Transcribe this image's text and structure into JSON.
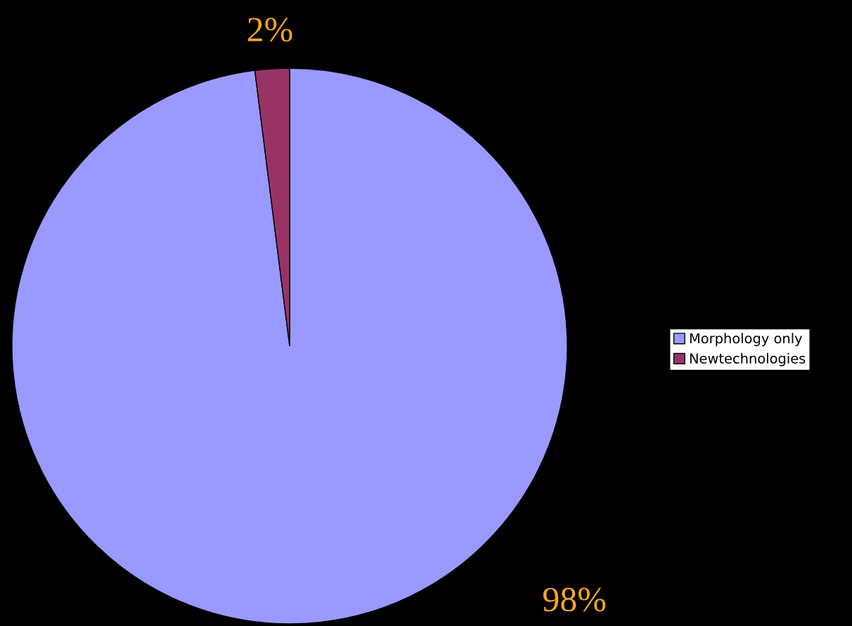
{
  "chart_data": {
    "type": "pie",
    "categories": [
      "Morphology only",
      "Newtechnologies"
    ],
    "values": [
      98,
      2
    ],
    "colors": [
      "#9999ff",
      "#993366"
    ],
    "value_labels": [
      "98%",
      "2%"
    ],
    "legend": "right"
  }
}
